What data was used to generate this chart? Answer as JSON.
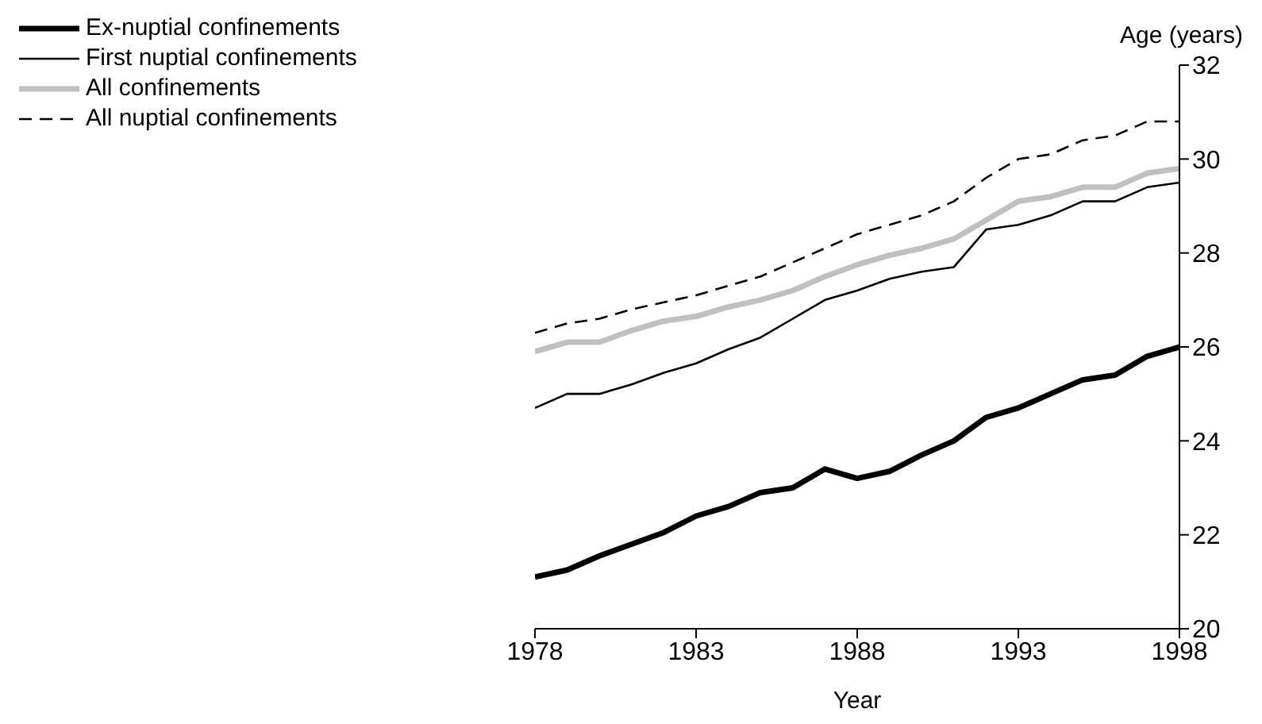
{
  "chart_data": {
    "type": "line",
    "xlabel": "Year",
    "ylabel": "Age (years)",
    "x": [
      1978,
      1979,
      1980,
      1981,
      1982,
      1983,
      1984,
      1985,
      1986,
      1987,
      1988,
      1989,
      1990,
      1991,
      1992,
      1993,
      1994,
      1995,
      1996,
      1997,
      1998
    ],
    "series": [
      {
        "name": "Ex-nuptial confinements",
        "color": "#000000",
        "values": [
          21.1,
          21.25,
          21.55,
          21.8,
          22.05,
          22.4,
          22.6,
          22.9,
          23.0,
          23.4,
          23.2,
          23.35,
          23.7,
          24.0,
          24.5,
          24.7,
          25.0,
          25.3,
          25.4,
          25.8,
          26.0
        ]
      },
      {
        "name": "First nuptial confinements",
        "color": "#000000",
        "values": [
          24.7,
          25.0,
          25.0,
          25.2,
          25.45,
          25.65,
          25.95,
          26.2,
          26.6,
          27.0,
          27.2,
          27.45,
          27.6,
          27.7,
          28.5,
          28.6,
          28.8,
          29.1,
          29.1,
          29.4,
          29.5
        ]
      },
      {
        "name": "All confinements",
        "color": "#c0c0c0",
        "values": [
          25.9,
          26.1,
          26.1,
          26.35,
          26.55,
          26.65,
          26.85,
          27.0,
          27.2,
          27.5,
          27.75,
          27.95,
          28.1,
          28.3,
          28.7,
          29.1,
          29.2,
          29.4,
          29.4,
          29.7,
          29.8
        ]
      },
      {
        "name": "All nuptial confinements",
        "color": "#000000",
        "line_style": "dashed",
        "values": [
          26.3,
          26.5,
          26.6,
          26.8,
          26.95,
          27.1,
          27.3,
          27.5,
          27.8,
          28.1,
          28.4,
          28.6,
          28.8,
          29.1,
          29.6,
          30.0,
          30.1,
          30.4,
          30.5,
          30.8,
          30.8
        ]
      }
    ],
    "xlim": [
      1978,
      1998
    ],
    "xticks": [
      1978,
      1983,
      1988,
      1993,
      1998
    ],
    "ylim": [
      20,
      32
    ],
    "yticks": [
      20,
      22,
      24,
      26,
      28,
      30,
      32
    ],
    "grid": false,
    "legend": "top left",
    "marker": "none"
  }
}
